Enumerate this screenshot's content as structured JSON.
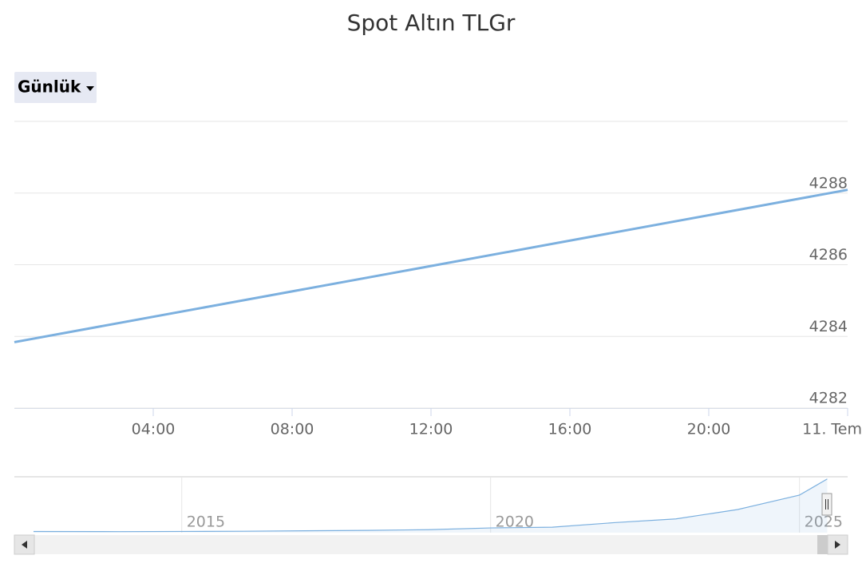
{
  "chart_data": [
    {
      "type": "line",
      "title": "Spot Altın TLGr",
      "dropdown": "Günlük",
      "x": [
        0,
        24
      ],
      "series": [
        {
          "name": "Spot Altın TLGr",
          "color": "#7cb0df",
          "values": [
            4283.84,
            4288.09
          ]
        }
      ],
      "xlim": [
        0,
        24
      ],
      "xticks": [
        {
          "value": 4,
          "label": "04:00"
        },
        {
          "value": 8,
          "label": "08:00"
        },
        {
          "value": 12,
          "label": "12:00"
        },
        {
          "value": 16,
          "label": "16:00"
        },
        {
          "value": 20,
          "label": "20:00"
        },
        {
          "value": 24,
          "label": "11. Tem"
        }
      ],
      "ylim": [
        4282,
        4290
      ],
      "yticks": [
        4282,
        4284,
        4286,
        4288
      ],
      "grid": true
    },
    {
      "type": "area",
      "x": [
        2012.6,
        2014,
        2015,
        2016,
        2017,
        2018,
        2019,
        2020,
        2021,
        2022,
        2023,
        2024,
        2025,
        2025.45
      ],
      "series": [
        {
          "name": "Spot Altın TLGr",
          "color": "#7cb0df",
          "values": [
            95,
            85,
            100,
            115,
            150,
            185,
            240,
            380,
            440,
            800,
            1100,
            1850,
            3000,
            4288
          ]
        }
      ],
      "xlim": [
        2012.29,
        2025.78
      ],
      "xticks": [
        2015,
        2020,
        2025
      ],
      "ylim": [
        0,
        4400
      ]
    }
  ]
}
